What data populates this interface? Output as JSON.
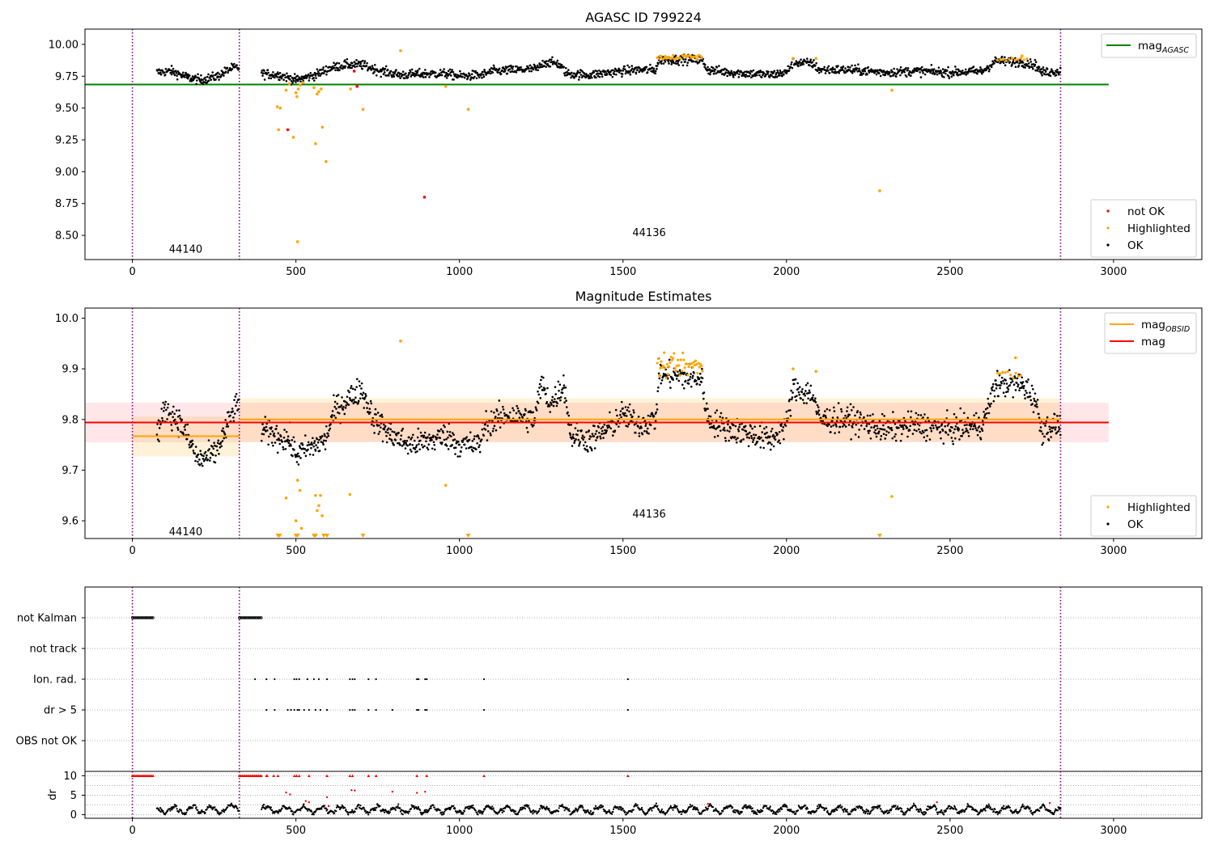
{
  "chart_data": [
    {
      "type": "scatter",
      "title": "AGASC ID 799224",
      "xlim": [
        -145,
        3270
      ],
      "ylim": [
        8.31,
        10.12
      ],
      "x_ticks": [
        0,
        500,
        1000,
        1500,
        2000,
        2500,
        3000
      ],
      "y_ticks": [
        10.0,
        9.75,
        9.5,
        9.25,
        9.0,
        8.75,
        8.5
      ],
      "y_tick_labels": [
        "10.00",
        "9.75",
        "9.50",
        "9.25",
        "9.00",
        "8.75",
        "8.50"
      ],
      "obsid_boundaries": [
        0,
        327,
        2838
      ],
      "obsid_labels": [
        {
          "text": "44140",
          "x": 163,
          "y": 8.39
        },
        {
          "text": "44136",
          "x": 1580,
          "y": 8.52
        }
      ],
      "lines": [
        {
          "name": "mag_AGASC",
          "value": 9.685,
          "x_range": [
            -145,
            2985
          ],
          "color": "#008000"
        }
      ],
      "series": [
        {
          "name": "not OK",
          "color": "#ff0000",
          "points": [
            [
              678,
              9.79
            ],
            [
              687,
              9.67
            ],
            [
              475,
              9.33
            ],
            [
              893,
              8.8
            ]
          ]
        },
        {
          "name": "Highlighted",
          "color": "#ffa500",
          "points": [
            [
              443,
              9.51
            ],
            [
              452,
              9.5
            ],
            [
              447,
              9.33
            ],
            [
              470,
              9.64
            ],
            [
              480,
              9.69
            ],
            [
              492,
              9.27
            ],
            [
              500,
              9.62
            ],
            [
              503,
              9.59
            ],
            [
              507,
              9.65
            ],
            [
              513,
              9.68
            ],
            [
              522,
              9.7
            ],
            [
              505,
              8.45
            ],
            [
              555,
              9.66
            ],
            [
              560,
              9.22
            ],
            [
              565,
              9.61
            ],
            [
              570,
              9.63
            ],
            [
              577,
              9.65
            ],
            [
              581,
              9.35
            ],
            [
              592,
              9.08
            ],
            [
              667,
              9.65
            ],
            [
              705,
              9.49
            ],
            [
              820,
              9.95
            ],
            [
              958,
              9.67
            ],
            [
              1027,
              9.49
            ],
            [
              2285,
              8.85
            ],
            [
              2322,
              9.64
            ],
            [
              2020,
              9.89
            ],
            [
              2090,
              9.89
            ],
            [
              2720,
              9.91
            ]
          ]
        },
        {
          "name": "OK",
          "color": "#000000",
          "generated_from_segments": true
        }
      ],
      "ok_segments": [
        [
          75,
          9.78
        ],
        [
          120,
          9.79
        ],
        [
          170,
          9.74
        ],
        [
          210,
          9.72
        ],
        [
          260,
          9.75
        ],
        [
          300,
          9.81
        ],
        [
          327,
          9.82
        ],
        [
          null,
          null
        ],
        [
          395,
          9.77
        ],
        [
          450,
          9.76
        ],
        [
          500,
          9.72
        ],
        [
          560,
          9.76
        ],
        [
          600,
          9.81
        ],
        [
          650,
          9.84
        ],
        [
          700,
          9.84
        ],
        [
          760,
          9.79
        ],
        [
          820,
          9.76
        ],
        [
          900,
          9.77
        ],
        [
          960,
          9.77
        ],
        [
          1000,
          9.75
        ],
        [
          1070,
          9.76
        ],
        [
          1100,
          9.79
        ],
        [
          1180,
          9.8
        ],
        [
          1240,
          9.81
        ],
        [
          1260,
          9.86
        ],
        [
          1300,
          9.85
        ],
        [
          1330,
          9.77
        ],
        [
          1400,
          9.76
        ],
        [
          1460,
          9.78
        ],
        [
          1540,
          9.8
        ],
        [
          1600,
          9.8
        ],
        [
          1610,
          9.88
        ],
        [
          1740,
          9.88
        ],
        [
          1760,
          9.8
        ],
        [
          1830,
          9.78
        ],
        [
          1900,
          9.77
        ],
        [
          1950,
          9.76
        ],
        [
          2000,
          9.78
        ],
        [
          2020,
          9.86
        ],
        [
          2080,
          9.85
        ],
        [
          2100,
          9.8
        ],
        [
          2200,
          9.8
        ],
        [
          2300,
          9.78
        ],
        [
          2400,
          9.79
        ],
        [
          2500,
          9.78
        ],
        [
          2600,
          9.79
        ],
        [
          2640,
          9.87
        ],
        [
          2720,
          9.86
        ],
        [
          2760,
          9.84
        ],
        [
          2780,
          9.78
        ],
        [
          2838,
          9.79
        ]
      ],
      "legends": [
        {
          "position": "upper right",
          "entries": [
            {
              "label": "mag",
              "sub": "AGASC",
              "kind": "line",
              "color": "#008000"
            }
          ]
        },
        {
          "position": "lower right",
          "entries": [
            {
              "label": "not OK",
              "kind": "dot",
              "color": "#ff0000"
            },
            {
              "label": "Highlighted",
              "kind": "dot",
              "color": "#ffa500"
            },
            {
              "label": "OK",
              "kind": "dot",
              "color": "#000000"
            }
          ]
        }
      ]
    },
    {
      "type": "scatter",
      "title": "Magnitude Estimates",
      "xlim": [
        -145,
        3270
      ],
      "ylim": [
        9.565,
        10.02
      ],
      "x_ticks": [
        0,
        500,
        1000,
        1500,
        2000,
        2500,
        3000
      ],
      "y_ticks": [
        10.0,
        9.9,
        9.8,
        9.7,
        9.6
      ],
      "y_tick_labels": [
        "10.0",
        "9.9",
        "9.8",
        "9.7",
        "9.6"
      ],
      "obsid_boundaries": [
        0,
        327,
        2838
      ],
      "obsid_labels": [
        {
          "text": "44140",
          "x": 163,
          "y": 9.578
        },
        {
          "text": "44136",
          "x": 1580,
          "y": 9.613
        }
      ],
      "bands": [
        {
          "name": "mag band",
          "x_range": [
            -145,
            2985
          ],
          "y_range": [
            9.755,
            9.833
          ],
          "color": "#ffb6c1",
          "opacity": 0.35
        },
        {
          "name": "mag_OBSID 44140 band",
          "x_range": [
            0,
            327
          ],
          "y_range": [
            9.727,
            9.806
          ],
          "color": "#ffa500",
          "opacity": 0.15
        },
        {
          "name": "mag_OBSID 44136 band",
          "x_range": [
            327,
            2838
          ],
          "y_range": [
            9.756,
            9.842
          ],
          "color": "#ffa500",
          "opacity": 0.15
        }
      ],
      "lines": [
        {
          "name": "mag",
          "value": 9.794,
          "x_range": [
            -145,
            2985
          ],
          "color": "#ff0000"
        },
        {
          "name": "mag_OBSID 44140",
          "value": 9.767,
          "x_range": [
            0,
            327
          ],
          "color": "#ffa500"
        },
        {
          "name": "mag_OBSID 44136",
          "value": 9.8,
          "x_range": [
            327,
            2838
          ],
          "color": "#ffa500"
        }
      ],
      "series": [
        {
          "name": "Highlighted",
          "color": "#ffa500",
          "points": [
            [
              470,
              9.645
            ],
            [
              500,
              9.6
            ],
            [
              505,
              9.68
            ],
            [
              512,
              9.66
            ],
            [
              517,
              9.585
            ],
            [
              560,
              9.65
            ],
            [
              565,
              9.62
            ],
            [
              570,
              9.63
            ],
            [
              575,
              9.65
            ],
            [
              580,
              9.61
            ],
            [
              665,
              9.652
            ],
            [
              820,
              9.955
            ],
            [
              958,
              9.67
            ],
            [
              2322,
              9.648
            ],
            [
              2020,
              9.9
            ],
            [
              2090,
              9.895
            ],
            [
              2700,
              9.922
            ]
          ],
          "clipped_markers": [
            445,
            450,
            500,
            505,
            555,
            560,
            585,
            595,
            705,
            1027,
            2285
          ]
        },
        {
          "name": "OK",
          "color": "#000000",
          "generated_from_segments": true
        }
      ],
      "ok_segments": [
        [
          75,
          9.77
        ],
        [
          100,
          9.82
        ],
        [
          140,
          9.8
        ],
        [
          180,
          9.75
        ],
        [
          200,
          9.72
        ],
        [
          250,
          9.73
        ],
        [
          280,
          9.77
        ],
        [
          310,
          9.82
        ],
        [
          327,
          9.83
        ],
        [
          null,
          null
        ],
        [
          395,
          9.78
        ],
        [
          430,
          9.77
        ],
        [
          480,
          9.76
        ],
        [
          500,
          9.73
        ],
        [
          560,
          9.75
        ],
        [
          590,
          9.76
        ],
        [
          620,
          9.82
        ],
        [
          660,
          9.84
        ],
        [
          700,
          9.86
        ],
        [
          740,
          9.8
        ],
        [
          790,
          9.77
        ],
        [
          850,
          9.75
        ],
        [
          920,
          9.76
        ],
        [
          960,
          9.77
        ],
        [
          1000,
          9.75
        ],
        [
          1060,
          9.75
        ],
        [
          1080,
          9.79
        ],
        [
          1150,
          9.81
        ],
        [
          1230,
          9.8
        ],
        [
          1250,
          9.87
        ],
        [
          1280,
          9.83
        ],
        [
          1320,
          9.87
        ],
        [
          1340,
          9.77
        ],
        [
          1400,
          9.76
        ],
        [
          1450,
          9.78
        ],
        [
          1500,
          9.81
        ],
        [
          1550,
          9.79
        ],
        [
          1600,
          9.8
        ],
        [
          1610,
          9.89
        ],
        [
          1740,
          9.88
        ],
        [
          1760,
          9.8
        ],
        [
          1830,
          9.78
        ],
        [
          1900,
          9.77
        ],
        [
          1950,
          9.76
        ],
        [
          2000,
          9.79
        ],
        [
          2020,
          9.86
        ],
        [
          2080,
          9.85
        ],
        [
          2100,
          9.8
        ],
        [
          2200,
          9.8
        ],
        [
          2300,
          9.78
        ],
        [
          2400,
          9.79
        ],
        [
          2500,
          9.78
        ],
        [
          2600,
          9.79
        ],
        [
          2640,
          9.87
        ],
        [
          2720,
          9.87
        ],
        [
          2760,
          9.84
        ],
        [
          2780,
          9.78
        ],
        [
          2838,
          9.79
        ]
      ],
      "legends": [
        {
          "position": "upper right",
          "entries": [
            {
              "label": "mag",
              "sub": "OBSID",
              "kind": "line",
              "color": "#ffa500"
            },
            {
              "label": "mag",
              "kind": "line",
              "color": "#ff0000"
            }
          ]
        },
        {
          "position": "lower right",
          "entries": [
            {
              "label": "Highlighted",
              "kind": "dot",
              "color": "#ffa500"
            },
            {
              "label": "OK",
              "kind": "dot",
              "color": "#000000"
            }
          ]
        }
      ]
    },
    {
      "type": "scatter",
      "title": "",
      "xlim": [
        -145,
        3270
      ],
      "x_ticks": [
        0,
        500,
        1000,
        1500,
        2000,
        2500,
        3000
      ],
      "obsid_boundaries": [
        0,
        327,
        2838
      ],
      "flag_rows": [
        "not Kalman",
        "not track",
        "Ion. rad.",
        "dr > 5",
        "OBS not OK"
      ],
      "flags": {
        "not Kalman": [
          [
            0,
            65
          ],
          [
            327,
            395
          ]
        ],
        "not track": [],
        "Ion. rad.": [
          375,
          410,
          435,
          495,
          502,
          510,
          535,
          555,
          570,
          595,
          665,
          673,
          680,
          722,
          745,
          870,
          875,
          895,
          900,
          1075,
          1515
        ],
        "dr > 5": [
          410,
          435,
          475,
          485,
          495,
          505,
          510,
          525,
          540,
          560,
          575,
          595,
          665,
          673,
          680,
          722,
          745,
          795,
          870,
          875,
          895,
          900,
          1075,
          1515
        ],
        "OBS not OK": []
      },
      "dr_panel": {
        "ylabel": "dr",
        "y_ticks": [
          10,
          5,
          0
        ],
        "ylim": [
          -0.5,
          10.5
        ],
        "clipped_at_10": [
          [
            0,
            65
          ],
          [
            327,
            395
          ],
          [
            410,
            412,
            432,
            445,
            495,
            502,
            510,
            540,
            595,
            665,
            673,
            722,
            745,
            870,
            900,
            1075,
            1515
          ]
        ],
        "red_points": [
          [
            470,
            5.7
          ],
          [
            482,
            5.2
          ],
          [
            530,
            3.5
          ],
          [
            540,
            3.2
          ],
          [
            595,
            4.5
          ],
          [
            600,
            2.2
          ],
          [
            670,
            6.3
          ],
          [
            680,
            6.2
          ],
          [
            795,
            5.9
          ],
          [
            870,
            5.6
          ],
          [
            895,
            5.9
          ],
          [
            1760,
            2.8
          ],
          [
            2460,
            3.2
          ],
          [
            2805,
            3.0
          ]
        ]
      }
    }
  ]
}
